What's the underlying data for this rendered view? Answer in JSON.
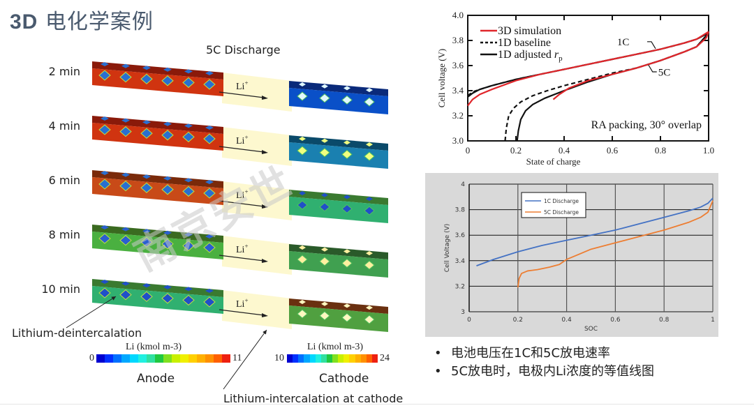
{
  "slide": {
    "title_prefix": "3D",
    "title_main": "电化学案例",
    "simulation": {
      "title": "5C Discharge",
      "ion_label": "Li",
      "ion_charge": "+",
      "rows": [
        {
          "time": "2 min",
          "anode_state": "red",
          "cathode_state": "blue"
        },
        {
          "time": "4 min",
          "anode_state": "red",
          "cathode_state": "blue-green"
        },
        {
          "time": "6 min",
          "anode_state": "red-green",
          "cathode_state": "green-blue"
        },
        {
          "time": "8 min",
          "anode_state": "green",
          "cathode_state": "green-brown"
        },
        {
          "time": "10 min",
          "anode_state": "green-blue",
          "cathode_state": "green-orange"
        }
      ],
      "annotation_left": "Lithium-deintercalation",
      "annotation_right": "Lithium-intercalation at cathode",
      "anode_colorbar": {
        "label": "Li (kmol m-3)",
        "min": "0",
        "max": "11",
        "electrode": "Anode"
      },
      "cathode_colorbar": {
        "label": "Li (kmol m-3)",
        "min": "10",
        "max": "24",
        "electrode": "Cathode"
      }
    },
    "bullets": [
      "电池电压在1C和5C放电速率",
      "5C放电时，电极内Li浓度的等值线图"
    ],
    "watermark": "南京安世",
    "colors": {
      "title": "#4a5a6e",
      "red_series": "#e0262b",
      "black_series": "#111111",
      "blue_series": "#4472c4",
      "orange_series": "#ed7d31",
      "chart2_bg": "#d9d9d9",
      "electrolyte": "#fdf8cf"
    }
  },
  "chart_data": [
    {
      "type": "line",
      "title": "",
      "xlabel": "State of charge",
      "ylabel": "Cell voltage (V)",
      "xlim": [
        0,
        1.0
      ],
      "ylim": [
        3.0,
        4.0
      ],
      "xticks": [
        "0",
        "0.2",
        "0.4",
        "0.6",
        "0.8",
        "1.0"
      ],
      "yticks": [
        "3.0",
        "3.2",
        "3.4",
        "3.6",
        "3.8",
        "4.0"
      ],
      "grid": false,
      "legend_position": "top-left",
      "legend": [
        "3D simulation",
        "1D baseline",
        "1D adjusted rp"
      ],
      "annotations": [
        "1C",
        "5C",
        "RA packing, 30° overlap"
      ],
      "series": [
        {
          "name": "3D simulation 1C",
          "style": "red-solid",
          "x": [
            0,
            0.02,
            0.05,
            0.1,
            0.2,
            0.3,
            0.4,
            0.5,
            0.6,
            0.7,
            0.8,
            0.9,
            0.95,
            1.0
          ],
          "y": [
            3.28,
            3.33,
            3.37,
            3.41,
            3.48,
            3.53,
            3.57,
            3.61,
            3.65,
            3.69,
            3.73,
            3.78,
            3.81,
            3.87
          ]
        },
        {
          "name": "1D baseline 1C",
          "style": "black-dashed",
          "x": [
            0,
            0.02,
            0.05,
            0.1,
            0.2,
            0.3,
            0.4,
            0.5,
            0.6,
            0.7,
            0.8,
            0.9,
            0.95,
            1.0
          ],
          "y": [
            3.36,
            3.39,
            3.41,
            3.44,
            3.49,
            3.53,
            3.57,
            3.61,
            3.65,
            3.69,
            3.73,
            3.78,
            3.81,
            3.86
          ]
        },
        {
          "name": "1D adjusted rp 1C",
          "style": "black-solid",
          "x": [
            0,
            0.02,
            0.05,
            0.1,
            0.2,
            0.3,
            0.4,
            0.5,
            0.6,
            0.7,
            0.8,
            0.9,
            0.95,
            1.0
          ],
          "y": [
            3.35,
            3.38,
            3.41,
            3.44,
            3.49,
            3.53,
            3.57,
            3.61,
            3.65,
            3.69,
            3.73,
            3.78,
            3.81,
            3.86
          ]
        },
        {
          "name": "3D simulation 5C",
          "style": "red-solid",
          "x": [
            0.355,
            0.38,
            0.42,
            0.5,
            0.6,
            0.7,
            0.8,
            0.9,
            0.95,
            0.99,
            1.0
          ],
          "y": [
            3.33,
            3.37,
            3.42,
            3.48,
            3.53,
            3.58,
            3.64,
            3.71,
            3.75,
            3.82,
            3.87
          ]
        },
        {
          "name": "1D baseline 5C",
          "style": "black-dashed",
          "x": [
            0.155,
            0.16,
            0.17,
            0.19,
            0.22,
            0.27,
            0.33,
            0.4,
            0.5,
            0.6,
            0.7,
            0.8,
            0.9,
            0.95,
            1.0
          ],
          "y": [
            3.0,
            3.1,
            3.2,
            3.26,
            3.31,
            3.36,
            3.4,
            3.44,
            3.49,
            3.54,
            3.58,
            3.64,
            3.71,
            3.75,
            3.86
          ]
        },
        {
          "name": "1D adjusted rp 5C",
          "style": "black-solid",
          "x": [
            0.205,
            0.21,
            0.22,
            0.24,
            0.27,
            0.32,
            0.4,
            0.5,
            0.6,
            0.7,
            0.8,
            0.9,
            0.95,
            1.0
          ],
          "y": [
            3.0,
            3.08,
            3.17,
            3.24,
            3.29,
            3.34,
            3.4,
            3.47,
            3.53,
            3.58,
            3.64,
            3.71,
            3.75,
            3.86
          ]
        }
      ]
    },
    {
      "type": "line",
      "title": "",
      "xlabel": "SOC",
      "ylabel": "Cell Voltage (V)",
      "xlim": [
        0,
        1
      ],
      "ylim": [
        3,
        4
      ],
      "xticks": [
        "0",
        "0.2",
        "0.4",
        "0.6",
        "0.8",
        "1"
      ],
      "yticks": [
        "3",
        "3.2",
        "3.4",
        "3.6",
        "3.8",
        "4"
      ],
      "grid": true,
      "legend_position": "top-left",
      "series": [
        {
          "name": "1C Discharge",
          "x": [
            0.03,
            0.1,
            0.2,
            0.3,
            0.4,
            0.5,
            0.6,
            0.7,
            0.8,
            0.9,
            0.95,
            0.98,
            1.0
          ],
          "y": [
            3.36,
            3.41,
            3.47,
            3.52,
            3.56,
            3.6,
            3.64,
            3.69,
            3.74,
            3.79,
            3.82,
            3.85,
            3.89
          ]
        },
        {
          "name": "5C Discharge",
          "x": [
            0.2,
            0.205,
            0.215,
            0.24,
            0.28,
            0.33,
            0.37,
            0.4,
            0.45,
            0.5,
            0.6,
            0.7,
            0.8,
            0.9,
            0.95,
            0.98,
            1.0
          ],
          "y": [
            3.19,
            3.26,
            3.3,
            3.32,
            3.33,
            3.35,
            3.37,
            3.41,
            3.45,
            3.49,
            3.54,
            3.59,
            3.64,
            3.7,
            3.74,
            3.78,
            3.87
          ]
        }
      ]
    }
  ]
}
